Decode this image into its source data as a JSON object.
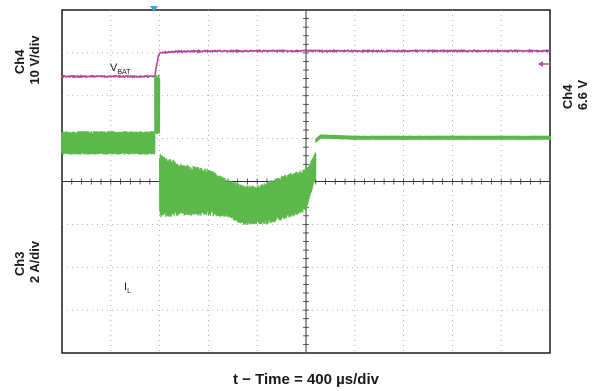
{
  "chart_data": {
    "type": "line",
    "title": "",
    "xlabel": "t − Time = 400 µs/div",
    "grid": true,
    "divisions": {
      "x": 10,
      "y": 8
    },
    "channels": [
      {
        "id": "ch4",
        "name_lines": [
          "Ch4",
          "10 V/div"
        ],
        "offset_lines": [
          "Ch4",
          "6.6 V"
        ],
        "trace_label": {
          "main": "V",
          "sub": "BAT"
        },
        "color": "#b0449e",
        "marker_color": "#c04aa6",
        "unit_per_div": 10,
        "unit": "V",
        "reference_div": 2.0,
        "x_div": [
          0,
          1.9,
          1.93,
          1.97,
          2.0,
          2.3,
          3.0,
          4.0,
          6.0,
          8.0,
          10.0
        ],
        "y_div": [
          1.55,
          1.55,
          1.35,
          1.1,
          1.0,
          0.97,
          0.96,
          0.955,
          0.955,
          0.955,
          0.955
        ],
        "ripple_div": 0.03
      },
      {
        "id": "ch3",
        "name_lines": [
          "Ch3",
          "2 A/div"
        ],
        "trace_label": {
          "main": "I",
          "sub": "L"
        },
        "color": "#5cb84a",
        "unit_per_div": 2,
        "unit": "A",
        "reference_div": 4.0,
        "segments": [
          {
            "x_div": [
              0,
              1.9
            ],
            "center_div": 3.1,
            "band_div": 0.55
          },
          {
            "x_div": [
              1.9,
              2.0
            ],
            "center_div": 2.2,
            "band_div": 1.4
          },
          {
            "x_div": [
              2.0,
              2.5,
              3.0,
              3.4,
              3.7,
              4.0,
              4.2,
              4.6,
              5.0,
              5.2
            ],
            "center_div": [
              4.1,
              4.2,
              4.25,
              4.4,
              4.55,
              4.55,
              4.5,
              4.35,
              4.2,
              3.6
            ],
            "band_div": [
              1.5,
              1.2,
              1.1,
              0.9,
              0.95,
              0.9,
              1.0,
              1.05,
              1.0,
              0.6
            ]
          },
          {
            "x_div": [
              5.2,
              5.3,
              6.0,
              10.0
            ],
            "center_div": [
              3.05,
              2.95,
              2.98,
              2.98
            ],
            "band_div": 0.1
          }
        ]
      }
    ]
  }
}
